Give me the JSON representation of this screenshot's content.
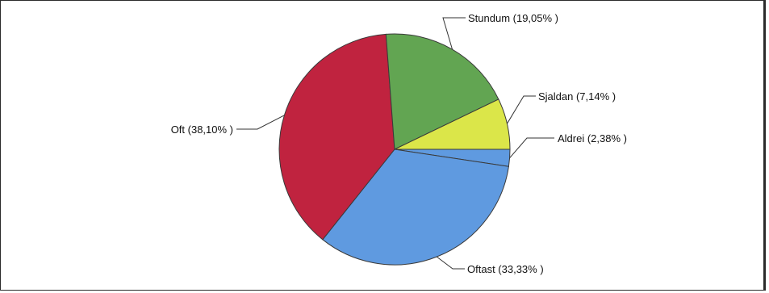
{
  "chart_data": {
    "type": "pie",
    "title": "",
    "slices": [
      {
        "label": "Aldrei (2,38% )",
        "value": 2.38,
        "color": "#5f9ae0"
      },
      {
        "label": "Oftast (33,33% )",
        "value": 33.33,
        "color": "#5f9ae0"
      },
      {
        "label": "Oft (38,10% )",
        "value": 38.1,
        "color": "#c0233f"
      },
      {
        "label": "Stundum (19,05% )",
        "value": 19.05,
        "color": "#62a552"
      },
      {
        "label": "Sjaldan (7,14% )",
        "value": 7.14,
        "color": "#dbe649"
      }
    ],
    "start_angle_deg": 0,
    "direction": "clockwise",
    "legend": "none"
  }
}
